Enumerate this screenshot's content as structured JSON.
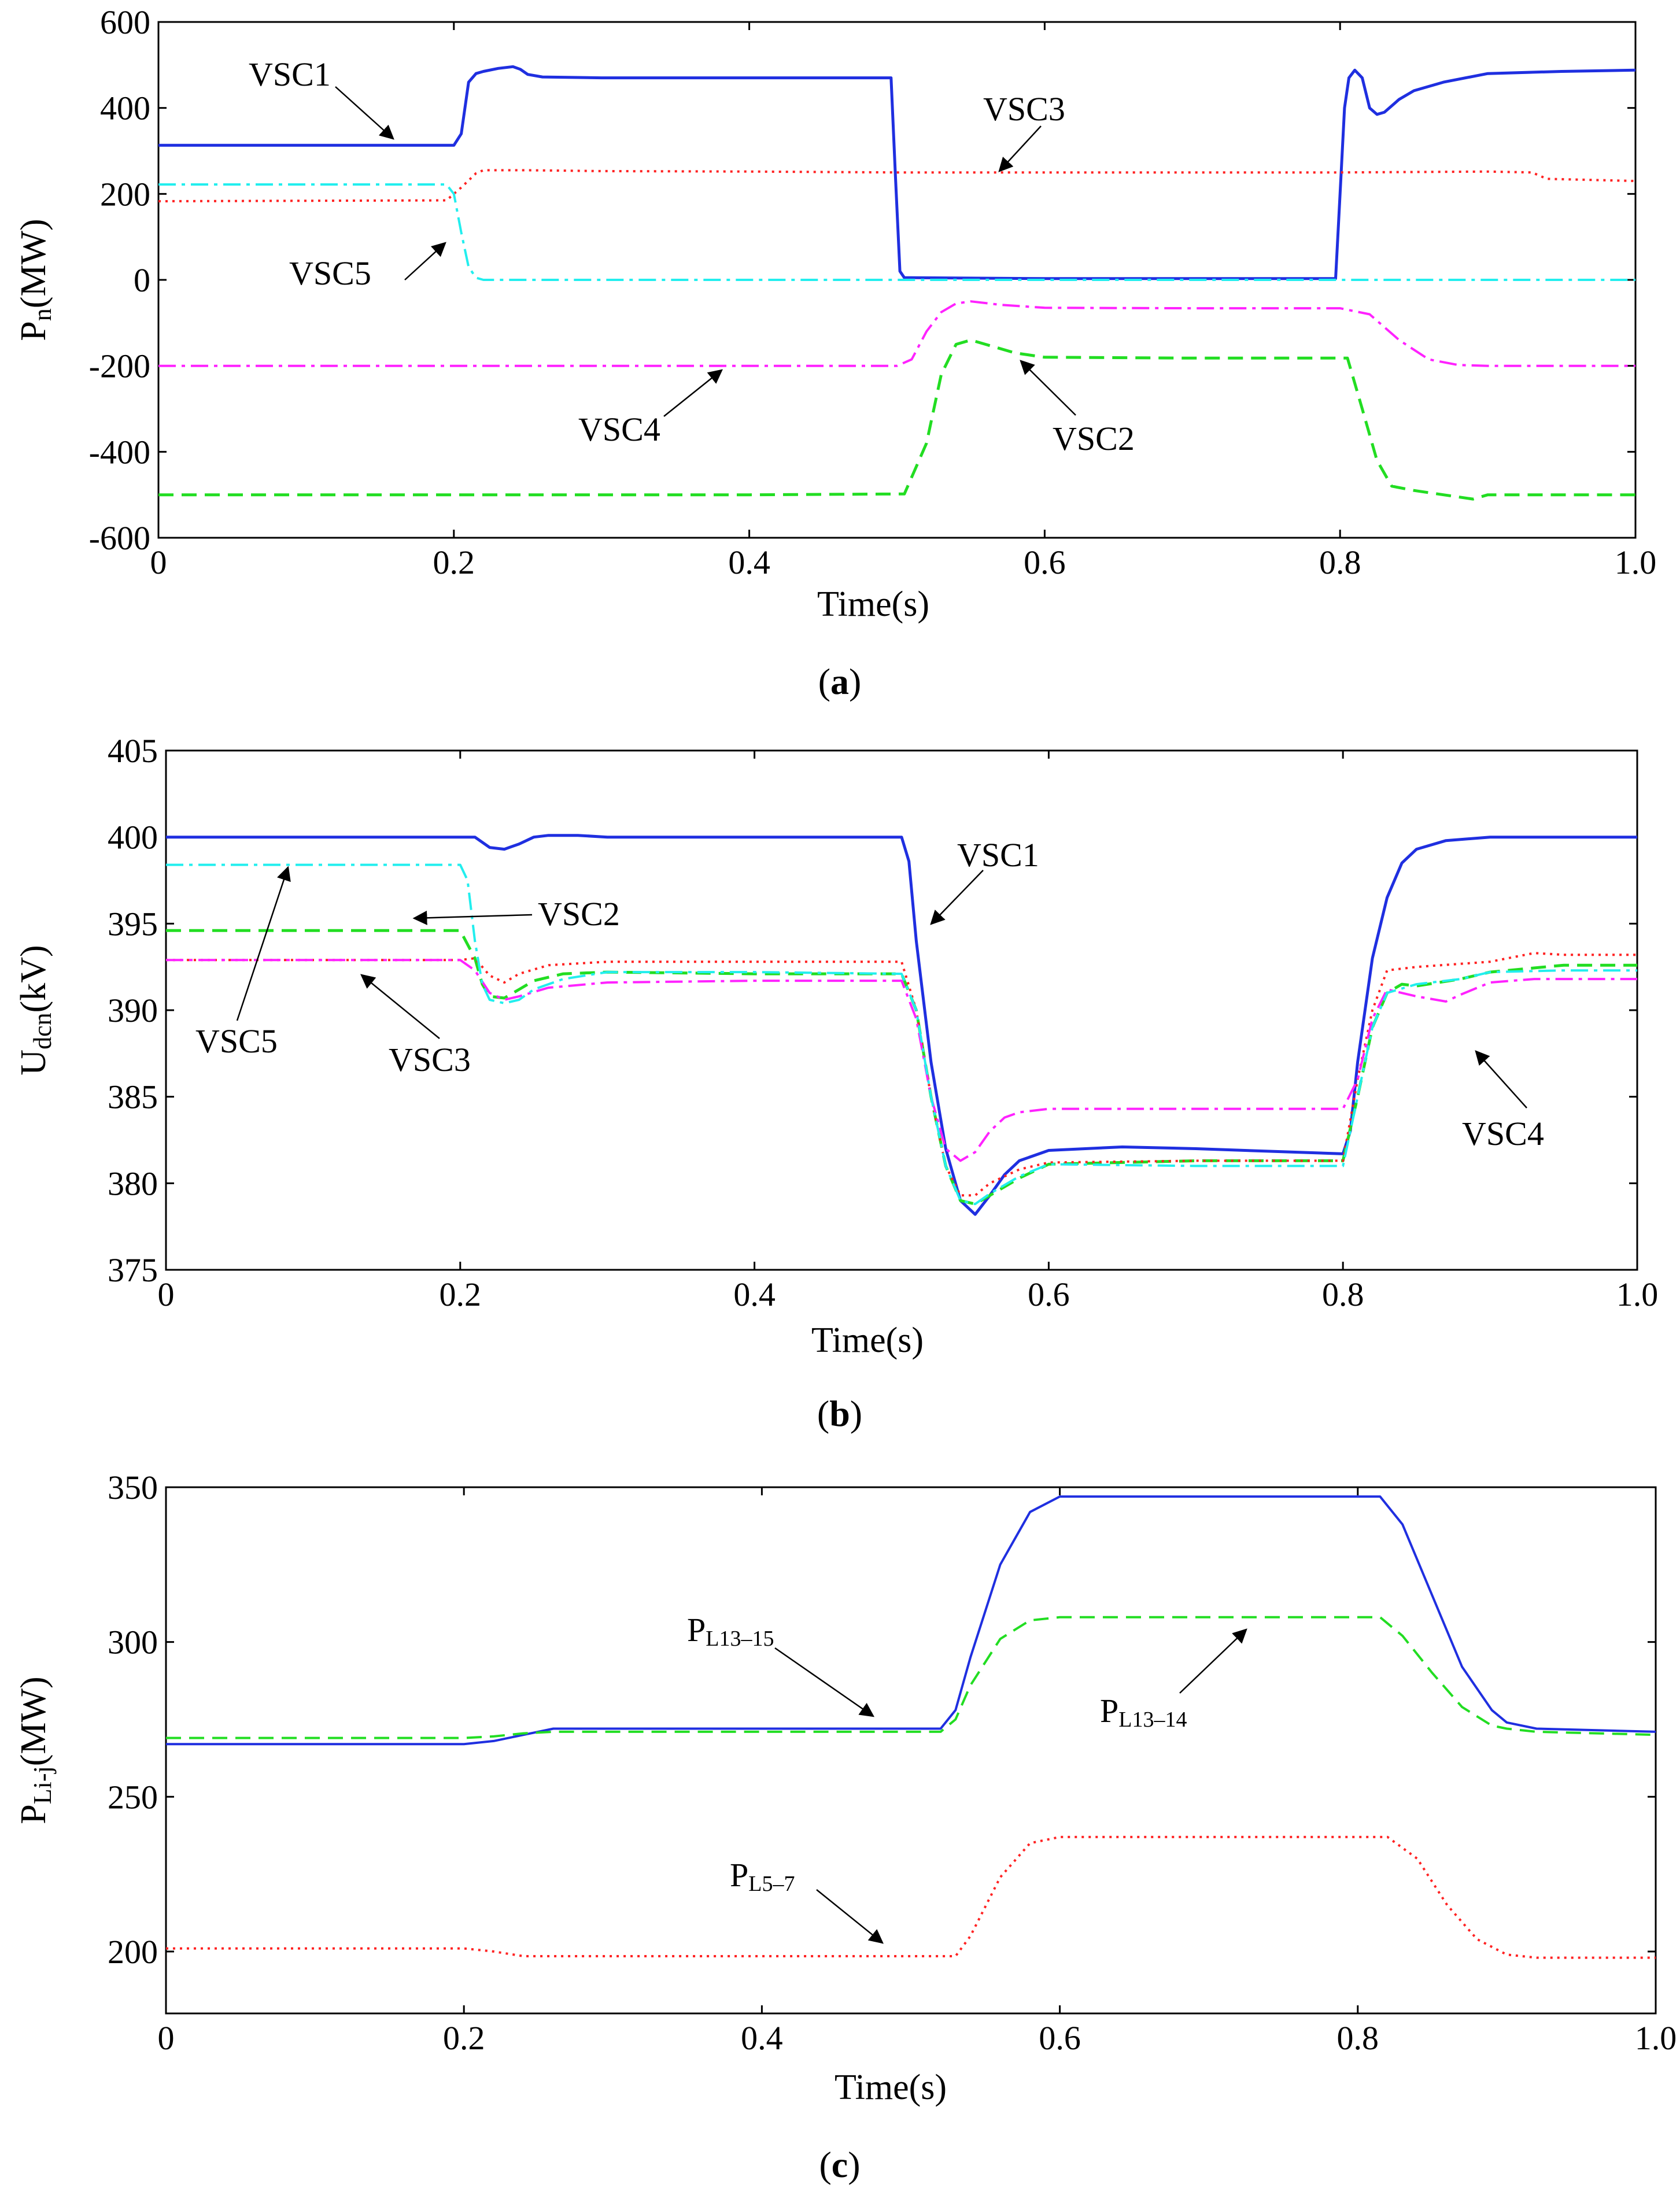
{
  "chart_data": [
    {
      "panel": "(a)",
      "caption_letter": "a",
      "type": "line",
      "ylabel_main": "P",
      "ylabel_sub": "n",
      "ylabel_rest": "(MW)",
      "xlabel": "Time(s)",
      "xlim": [
        0,
        1.0
      ],
      "ylim": [
        -600,
        600
      ],
      "xticks": [
        0,
        0.2,
        0.4,
        0.6,
        0.8,
        1.0
      ],
      "xtick_labels": [
        "0",
        "0.2",
        "0.4",
        "0.6",
        "0.8",
        "1.0"
      ],
      "yticks": [
        600,
        400,
        200,
        0,
        -200,
        -400,
        -600
      ],
      "ytick_labels": [
        "600",
        "400",
        "200",
        "0",
        "-200",
        "-400",
        "-600"
      ],
      "series": [
        {
          "name": "VSC1",
          "color": "#1f2fe0",
          "dash": "",
          "width": 5,
          "x": [
            0,
            0.2,
            0.205,
            0.21,
            0.215,
            0.22,
            0.23,
            0.24,
            0.245,
            0.25,
            0.26,
            0.3,
            0.4,
            0.496,
            0.499,
            0.502,
            0.505,
            0.51,
            0.6,
            0.7,
            0.797,
            0.8,
            0.803,
            0.806,
            0.81,
            0.815,
            0.82,
            0.825,
            0.83,
            0.84,
            0.85,
            0.87,
            0.9,
            0.95,
            1.0
          ],
          "y": [
            313,
            313,
            340,
            460,
            480,
            485,
            492,
            496,
            490,
            478,
            472,
            470,
            470,
            470,
            240,
            20,
            5,
            5,
            3,
            3,
            3,
            200,
            400,
            470,
            488,
            470,
            400,
            385,
            390,
            420,
            440,
            460,
            480,
            485,
            488
          ]
        },
        {
          "name": "VSC2",
          "color": "#22dd22",
          "dash": "26 14",
          "width": 5,
          "x": [
            0,
            0.2,
            0.3,
            0.4,
            0.505,
            0.52,
            0.53,
            0.54,
            0.55,
            0.56,
            0.58,
            0.6,
            0.7,
            0.805,
            0.815,
            0.825,
            0.835,
            0.85,
            0.87,
            0.89,
            0.9,
            0.92,
            1.0
          ],
          "y": [
            -500,
            -500,
            -500,
            -500,
            -498,
            -380,
            -220,
            -150,
            -140,
            -150,
            -170,
            -180,
            -182,
            -182,
            -300,
            -420,
            -480,
            -490,
            -500,
            -510,
            -500,
            -500,
            -500
          ]
        },
        {
          "name": "VSC3",
          "color": "#ff2222",
          "dash": "4 8",
          "width": 4,
          "x": [
            0,
            0.195,
            0.205,
            0.215,
            0.22,
            0.25,
            0.3,
            0.4,
            0.5,
            0.6,
            0.7,
            0.8,
            0.9,
            0.93,
            0.94,
            1.0
          ],
          "y": [
            183,
            185,
            215,
            248,
            255,
            255,
            253,
            252,
            250,
            250,
            250,
            250,
            252,
            250,
            235,
            230
          ]
        },
        {
          "name": "VSC4",
          "color": "#ff22ff",
          "dash": "30 10 6 10",
          "width": 4,
          "x": [
            0,
            0.2,
            0.3,
            0.4,
            0.5,
            0.51,
            0.52,
            0.53,
            0.54,
            0.55,
            0.57,
            0.6,
            0.7,
            0.8,
            0.82,
            0.84,
            0.86,
            0.88,
            0.9,
            0.95,
            1.0
          ],
          "y": [
            -200,
            -200,
            -200,
            -200,
            -200,
            -185,
            -120,
            -75,
            -55,
            -50,
            -58,
            -65,
            -66,
            -66,
            -80,
            -140,
            -185,
            -198,
            -200,
            -200,
            -200
          ]
        },
        {
          "name": "VSC5",
          "color": "#22eeee",
          "dash": "30 10 6 10",
          "width": 4,
          "x": [
            0,
            0.195,
            0.2,
            0.205,
            0.21,
            0.215,
            0.22,
            0.3,
            0.5,
            0.7,
            0.9,
            1.0
          ],
          "y": [
            222,
            222,
            200,
            110,
            30,
            5,
            0,
            0,
            0,
            0,
            0,
            0
          ]
        }
      ],
      "annotations": [
        {
          "text": "VSC1",
          "target": "VSC1"
        },
        {
          "text": "VSC3",
          "target": "VSC3"
        },
        {
          "text": "VSC5",
          "target": "VSC5"
        },
        {
          "text": "VSC4",
          "target": "VSC4"
        },
        {
          "text": "VSC2",
          "target": "VSC2"
        }
      ]
    },
    {
      "panel": "(b)",
      "caption_letter": "b",
      "type": "line",
      "ylabel_main": "U",
      "ylabel_sub": "dcn",
      "ylabel_rest": "(kV)",
      "xlabel": "Time(s)",
      "xlim": [
        0,
        1.0
      ],
      "ylim": [
        375,
        405
      ],
      "xticks": [
        0,
        0.2,
        0.4,
        0.6,
        0.8,
        1.0
      ],
      "xtick_labels": [
        "0",
        "0.2",
        "0.4",
        "0.6",
        "0.8",
        "1.0"
      ],
      "yticks": [
        405,
        400,
        395,
        390,
        385,
        380,
        375
      ],
      "ytick_labels": [
        "405",
        "400",
        "395",
        "390",
        "385",
        "380",
        "375"
      ],
      "series": [
        {
          "name": "VSC1",
          "color": "#1f2fe0",
          "dash": "",
          "width": 5,
          "x": [
            0,
            0.2,
            0.21,
            0.22,
            0.23,
            0.24,
            0.25,
            0.26,
            0.28,
            0.3,
            0.5,
            0.505,
            0.51,
            0.52,
            0.53,
            0.54,
            0.55,
            0.56,
            0.57,
            0.58,
            0.6,
            0.65,
            0.7,
            0.8,
            0.805,
            0.81,
            0.82,
            0.83,
            0.84,
            0.85,
            0.87,
            0.9,
            0.95,
            1.0
          ],
          "y": [
            400,
            400,
            400,
            399.4,
            399.3,
            399.6,
            400,
            400.1,
            400.1,
            400,
            400,
            398.6,
            394,
            387,
            382,
            379,
            378.2,
            379.3,
            380.5,
            381.3,
            381.9,
            382.1,
            382,
            381.7,
            383,
            387,
            393,
            396.5,
            398.5,
            399.3,
            399.8,
            400,
            400,
            400
          ]
        },
        {
          "name": "VSC2",
          "color": "#22dd22",
          "dash": "26 14",
          "width": 5,
          "x": [
            0,
            0.2,
            0.21,
            0.215,
            0.22,
            0.23,
            0.24,
            0.25,
            0.27,
            0.3,
            0.4,
            0.5,
            0.51,
            0.52,
            0.53,
            0.54,
            0.55,
            0.56,
            0.58,
            0.6,
            0.7,
            0.8,
            0.81,
            0.82,
            0.83,
            0.84,
            0.85,
            0.88,
            0.9,
            0.95,
            1.0
          ],
          "y": [
            394.6,
            394.6,
            393,
            391.5,
            390.8,
            390.7,
            391.2,
            391.7,
            392.1,
            392.2,
            392.1,
            392.1,
            390,
            385,
            381,
            379,
            378.8,
            379.3,
            380.3,
            381.1,
            381.3,
            381.3,
            385,
            389,
            391,
            391.5,
            391.4,
            391.8,
            392.2,
            392.6,
            392.6
          ]
        },
        {
          "name": "VSC3",
          "color": "#ff2222",
          "dash": "4 8",
          "width": 4,
          "x": [
            0,
            0.2,
            0.21,
            0.22,
            0.23,
            0.24,
            0.26,
            0.3,
            0.4,
            0.5,
            0.51,
            0.52,
            0.53,
            0.54,
            0.55,
            0.56,
            0.58,
            0.6,
            0.7,
            0.8,
            0.81,
            0.82,
            0.83,
            0.85,
            0.9,
            0.93,
            0.95,
            1.0
          ],
          "y": [
            392.9,
            392.9,
            393,
            392,
            391.6,
            392.1,
            392.6,
            392.8,
            392.8,
            392.8,
            390,
            385,
            381,
            379.3,
            379.3,
            380,
            380.8,
            381.2,
            381.3,
            381.3,
            386,
            390,
            392.3,
            392.5,
            392.8,
            393.3,
            393.2,
            393.2
          ]
        },
        {
          "name": "VSC4",
          "color": "#ff22ff",
          "dash": "30 10 6 10",
          "width": 4,
          "x": [
            0,
            0.2,
            0.21,
            0.22,
            0.23,
            0.24,
            0.26,
            0.3,
            0.4,
            0.5,
            0.51,
            0.52,
            0.53,
            0.54,
            0.55,
            0.56,
            0.57,
            0.58,
            0.6,
            0.7,
            0.8,
            0.81,
            0.82,
            0.83,
            0.85,
            0.87,
            0.88,
            0.9,
            0.93,
            1.0
          ],
          "y": [
            392.9,
            392.9,
            392.3,
            391,
            390.6,
            390.8,
            391.3,
            391.6,
            391.7,
            391.7,
            389.5,
            385,
            382,
            381.3,
            381.8,
            383,
            383.8,
            384.1,
            384.3,
            384.3,
            384.3,
            386,
            389.5,
            391.2,
            390.8,
            390.5,
            390.9,
            391.6,
            391.8,
            391.8
          ]
        },
        {
          "name": "VSC5",
          "color": "#22eeee",
          "dash": "30 10 6 10",
          "width": 4,
          "x": [
            0,
            0.2,
            0.205,
            0.21,
            0.215,
            0.22,
            0.23,
            0.24,
            0.25,
            0.27,
            0.3,
            0.4,
            0.5,
            0.51,
            0.52,
            0.53,
            0.54,
            0.55,
            0.56,
            0.58,
            0.6,
            0.7,
            0.8,
            0.81,
            0.82,
            0.83,
            0.85,
            0.88,
            0.9,
            0.95,
            1.0
          ],
          "y": [
            398.4,
            398.4,
            397.5,
            394,
            391.5,
            390.6,
            390.4,
            390.6,
            391.2,
            391.8,
            392.2,
            392.2,
            392.1,
            390,
            385,
            381,
            379,
            378.8,
            379.4,
            380.4,
            381.1,
            381,
            381,
            385,
            389,
            391,
            391.5,
            391.8,
            392.2,
            392.3,
            392.3
          ]
        }
      ],
      "annotations": [
        {
          "text": "VSC1",
          "target": "VSC1"
        },
        {
          "text": "VSC2",
          "target": "VSC2"
        },
        {
          "text": "VSC5",
          "target": "VSC5"
        },
        {
          "text": "VSC3",
          "target": "VSC3"
        },
        {
          "text": "VSC4",
          "target": "VSC4"
        }
      ]
    },
    {
      "panel": "(c)",
      "caption_letter": "c",
      "type": "line",
      "ylabel_main": "P",
      "ylabel_sub": "Li-j",
      "ylabel_rest": "(MW)",
      "xlabel": "Time(s)",
      "xlim": [
        0,
        1.0
      ],
      "ylim": [
        180,
        350
      ],
      "xticks": [
        0,
        0.2,
        0.4,
        0.6,
        0.8,
        1.0
      ],
      "xtick_labels": [
        "0",
        "0.2",
        "0.4",
        "0.6",
        "0.8",
        "1.0"
      ],
      "yticks": [
        350,
        300,
        250,
        200
      ],
      "ytick_labels": [
        "350",
        "300",
        "250",
        "200"
      ],
      "series": [
        {
          "name": "PL13-15",
          "color": "#1f2fe0",
          "dash": "",
          "width": 4,
          "x": [
            0,
            0.2,
            0.22,
            0.24,
            0.26,
            0.3,
            0.4,
            0.52,
            0.53,
            0.54,
            0.56,
            0.58,
            0.6,
            0.7,
            0.8,
            0.815,
            0.83,
            0.85,
            0.87,
            0.89,
            0.9,
            0.92,
            1.0
          ],
          "y": [
            267,
            267,
            268,
            270,
            272,
            272,
            272,
            272,
            278,
            295,
            325,
            342,
            347,
            347,
            347,
            347,
            338,
            315,
            292,
            278,
            274,
            272,
            271
          ]
        },
        {
          "name": "PL13-14",
          "color": "#22dd22",
          "dash": "26 14",
          "width": 4,
          "x": [
            0,
            0.2,
            0.22,
            0.24,
            0.26,
            0.3,
            0.4,
            0.52,
            0.53,
            0.54,
            0.56,
            0.58,
            0.6,
            0.7,
            0.8,
            0.815,
            0.83,
            0.85,
            0.87,
            0.89,
            0.9,
            0.92,
            1.0
          ],
          "y": [
            269,
            269,
            269.5,
            270.5,
            271,
            271,
            271,
            271,
            275,
            286,
            301,
            307,
            308,
            308,
            308,
            308,
            302,
            290,
            279,
            273,
            272,
            271,
            270
          ]
        },
        {
          "name": "PL5-7",
          "color": "#ff2222",
          "dash": "4 8",
          "width": 4,
          "x": [
            0,
            0.2,
            0.22,
            0.24,
            0.3,
            0.4,
            0.53,
            0.54,
            0.56,
            0.58,
            0.6,
            0.7,
            0.8,
            0.82,
            0.84,
            0.86,
            0.88,
            0.9,
            0.92,
            1.0
          ],
          "y": [
            201,
            201,
            200,
            198.5,
            198.5,
            198.5,
            198.5,
            205,
            224,
            235,
            237,
            237,
            237,
            237,
            230,
            215,
            204,
            199,
            198,
            198
          ]
        }
      ],
      "annotations": [
        {
          "text_main": "P",
          "text_sub": "L13–15",
          "target": "PL13-15"
        },
        {
          "text_main": "P",
          "text_sub": "L13–14",
          "target": "PL13-14"
        },
        {
          "text_main": "P",
          "text_sub": "L5–7",
          "target": "PL5-7"
        }
      ]
    }
  ]
}
